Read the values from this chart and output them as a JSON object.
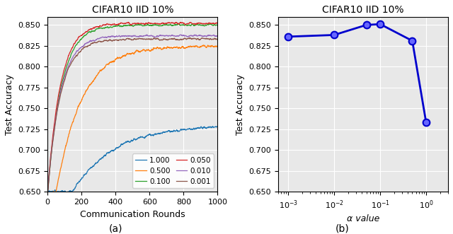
{
  "title": "CIFAR10 IID 10%",
  "left_xlabel": "Communication Rounds",
  "left_ylabel": "Test Accuracy",
  "right_xlabel": "α value",
  "right_ylabel": "Test Accuracy",
  "ylim": [
    0.65,
    0.86
  ],
  "yticks": [
    0.65,
    0.675,
    0.7,
    0.725,
    0.75,
    0.775,
    0.8,
    0.825,
    0.85
  ],
  "xlim_left": [
    0,
    1000
  ],
  "xticks_left": [
    0,
    200,
    400,
    600,
    800,
    1000
  ],
  "legend_labels": [
    "1.000",
    "0.500",
    "0.100",
    "0.050",
    "0.010",
    "0.001"
  ],
  "legend_colors": [
    "#1f77b4",
    "#ff7f0e",
    "#2ca02c",
    "#d62728",
    "#9467bd",
    "#8c564b"
  ],
  "alpha_values": [
    0.001,
    0.01,
    0.05,
    0.1,
    0.5,
    1.0
  ],
  "alpha_accuracies": [
    0.836,
    0.838,
    0.85,
    0.851,
    0.831,
    0.733
  ],
  "subfig_labels": [
    "(a)",
    "(b)"
  ],
  "background_color": "#e8e8e8"
}
